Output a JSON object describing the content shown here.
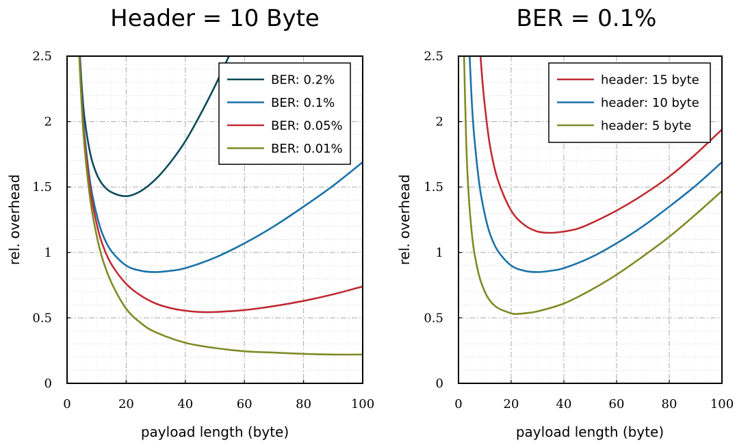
{
  "chart_data": [
    {
      "type": "line",
      "title": "Header = 10 Byte",
      "xlabel": "payload length (byte)",
      "ylabel": "rel. overhead",
      "xlim": [
        0,
        100
      ],
      "ylim": [
        0,
        2.5
      ],
      "x_ticks": [
        "0",
        "20",
        "40",
        "60",
        "80",
        "100"
      ],
      "y_ticks": [
        "0",
        "0.5",
        "1",
        "1.5",
        "2",
        "2.5"
      ],
      "grid": true,
      "legend_position": "top-right",
      "series": [
        {
          "name": "BER: 0.2%",
          "color": "#0b4a5a",
          "x": [
            4,
            5,
            6,
            8,
            10,
            12,
            15,
            20,
            25,
            30,
            35,
            40,
            45,
            50,
            55,
            58,
            60
          ],
          "y": [
            2.64,
            2.26,
            2.01,
            1.74,
            1.6,
            1.52,
            1.46,
            1.43,
            1.47,
            1.56,
            1.69,
            1.85,
            2.05,
            2.27,
            2.51,
            2.62,
            2.71
          ]
        },
        {
          "name": "BER: 0.1%",
          "color": "#1a72a8",
          "x": [
            4,
            5,
            6,
            8,
            10,
            12,
            15,
            20,
            25,
            30,
            35,
            40,
            50,
            60,
            70,
            80,
            90,
            100
          ],
          "y": [
            2.6,
            2.17,
            1.88,
            1.51,
            1.29,
            1.14,
            1.01,
            0.9,
            0.86,
            0.85,
            0.86,
            0.88,
            0.96,
            1.07,
            1.2,
            1.35,
            1.51,
            1.69
          ]
        },
        {
          "name": "BER: 0.05%",
          "color": "#c02a32",
          "x": [
            4,
            5,
            6,
            8,
            10,
            12,
            15,
            20,
            25,
            30,
            35,
            40,
            45,
            50,
            60,
            70,
            80,
            90,
            100
          ],
          "y": [
            2.58,
            2.14,
            1.84,
            1.46,
            1.22,
            1.06,
            0.91,
            0.76,
            0.67,
            0.61,
            0.575,
            0.555,
            0.545,
            0.545,
            0.56,
            0.59,
            0.63,
            0.68,
            0.74
          ]
        },
        {
          "name": "BER: 0.01%",
          "color": "#7f8a25",
          "x": [
            4,
            5,
            6,
            8,
            10,
            12,
            15,
            20,
            25,
            30,
            40,
            50,
            60,
            70,
            80,
            90,
            100
          ],
          "y": [
            2.56,
            2.1,
            1.78,
            1.38,
            1.13,
            0.95,
            0.77,
            0.57,
            0.46,
            0.39,
            0.31,
            0.27,
            0.245,
            0.235,
            0.225,
            0.22,
            0.22
          ]
        }
      ]
    },
    {
      "type": "line",
      "title": "BER = 0.1%",
      "xlabel": "payload length (byte)",
      "ylabel": "rel. overhead",
      "xlim": [
        0,
        100
      ],
      "ylim": [
        0,
        2.5
      ],
      "x_ticks": [
        "0",
        "20",
        "40",
        "60",
        "80",
        "100"
      ],
      "y_ticks": [
        "0",
        "0.5",
        "1",
        "1.5",
        "2",
        "2.5"
      ],
      "grid": true,
      "legend_position": "top-right",
      "series": [
        {
          "name": "header: 15 byte",
          "color": "#c02a32",
          "x": [
            8,
            9,
            10,
            12,
            15,
            20,
            25,
            30,
            35,
            40,
            45,
            50,
            60,
            70,
            80,
            90,
            100
          ],
          "y": [
            2.6,
            2.33,
            2.12,
            1.81,
            1.55,
            1.32,
            1.21,
            1.16,
            1.15,
            1.16,
            1.18,
            1.22,
            1.32,
            1.44,
            1.58,
            1.75,
            1.94
          ]
        },
        {
          "name": "header: 10 byte",
          "color": "#1a72a8",
          "x": [
            4,
            5,
            6,
            8,
            10,
            12,
            15,
            20,
            25,
            30,
            35,
            40,
            50,
            60,
            70,
            80,
            90,
            100
          ],
          "y": [
            2.6,
            2.17,
            1.88,
            1.51,
            1.29,
            1.14,
            1.01,
            0.9,
            0.86,
            0.85,
            0.86,
            0.88,
            0.96,
            1.07,
            1.2,
            1.35,
            1.51,
            1.69
          ]
        },
        {
          "name": "header: 5 byte",
          "color": "#7f8a25",
          "x": [
            2,
            3,
            4,
            5,
            6,
            8,
            10,
            12,
            15,
            20,
            22,
            25,
            30,
            40,
            50,
            60,
            70,
            80,
            90,
            100
          ],
          "y": [
            2.6,
            1.8,
            1.4,
            1.16,
            1.0,
            0.81,
            0.7,
            0.63,
            0.575,
            0.535,
            0.53,
            0.535,
            0.55,
            0.61,
            0.71,
            0.83,
            0.97,
            1.12,
            1.29,
            1.47
          ]
        }
      ]
    }
  ]
}
